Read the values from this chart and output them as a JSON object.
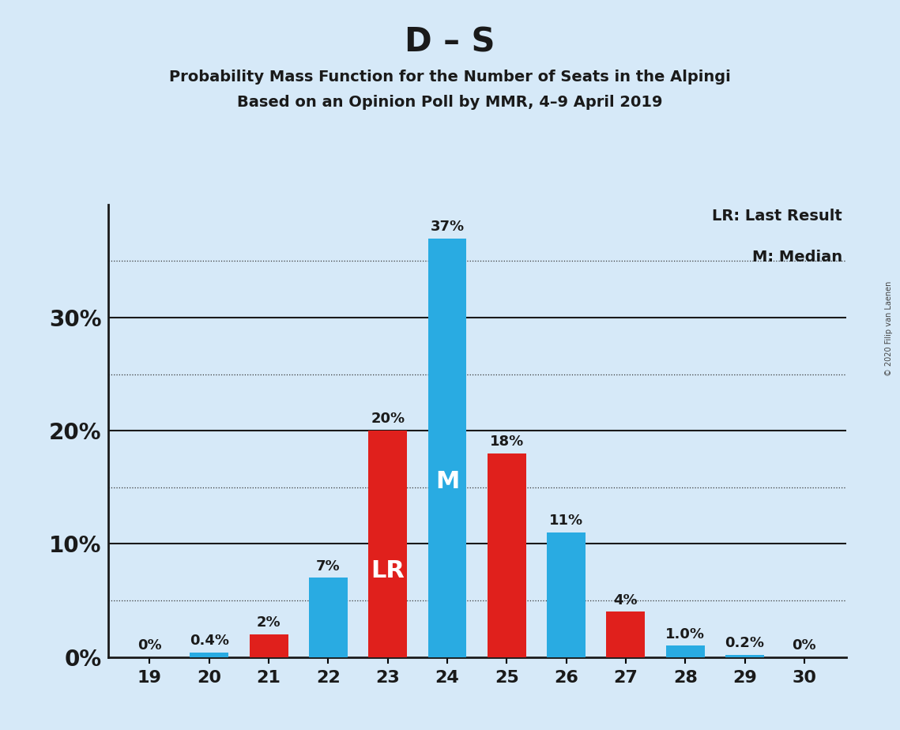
{
  "title": "D – S",
  "subtitle1": "Probability Mass Function for the Number of Seats in the Alpingi",
  "subtitle2": "Based on an Opinion Poll by MMR, 4–9 April 2019",
  "copyright": "© 2020 Filip van Laenen",
  "legend_lr": "LR: Last Result",
  "legend_m": "M: Median",
  "seats": [
    19,
    20,
    21,
    22,
    23,
    24,
    25,
    26,
    27,
    28,
    29,
    30
  ],
  "values": [
    0.0,
    0.4,
    2.0,
    7.0,
    20.0,
    37.0,
    18.0,
    11.0,
    4.0,
    1.0,
    0.2,
    0.0
  ],
  "bar_colors": [
    "#29ABE2",
    "#29ABE2",
    "#E0201C",
    "#29ABE2",
    "#E0201C",
    "#29ABE2",
    "#E0201C",
    "#29ABE2",
    "#E0201C",
    "#29ABE2",
    "#29ABE2",
    "#E0201C"
  ],
  "label_texts": [
    "0%",
    "0.4%",
    "2%",
    "7%",
    "20%",
    "37%",
    "18%",
    "11%",
    "4%",
    "1.0%",
    "0.2%",
    "0%"
  ],
  "lr_seat": 23,
  "median_seat": 24,
  "lr_label": "LR",
  "m_label": "M",
  "ylim_max": 40,
  "background_color": "#D6E9F8",
  "title_fontsize": 30,
  "subtitle_fontsize": 14,
  "label_fontsize": 13,
  "tick_fontsize": 16,
  "inner_label_fontsize": 22,
  "ytick_label_fontsize": 20
}
